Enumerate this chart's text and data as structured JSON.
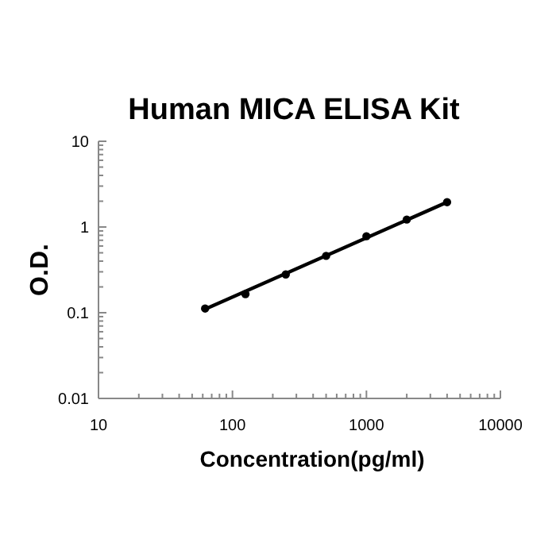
{
  "chart_data": {
    "type": "scatter",
    "title": "Human MICA ELISA Kit",
    "xlabel": "Concentration(pg/ml)",
    "ylabel": "O.D.",
    "log": "xy",
    "grid": false,
    "marker": "circle",
    "xlim": [
      10,
      10000
    ],
    "xticks": [
      10,
      100,
      1000,
      10000
    ],
    "ylim": [
      0.01,
      10
    ],
    "yticks": [
      0.01,
      0.1,
      1,
      10
    ],
    "series": [
      {
        "color": "#000000",
        "x": [
          62.5,
          125,
          250,
          500,
          1000,
          2000,
          4000
        ],
        "values": [
          0.112,
          0.165,
          0.28,
          0.46,
          0.78,
          1.22,
          1.95
        ]
      },
      {
        "type": "line",
        "color": "#000000",
        "line_style": "solid",
        "marker": "none",
        "x": [
          62.5,
          4000
        ],
        "values": [
          0.11,
          1.95
        ]
      }
    ]
  }
}
